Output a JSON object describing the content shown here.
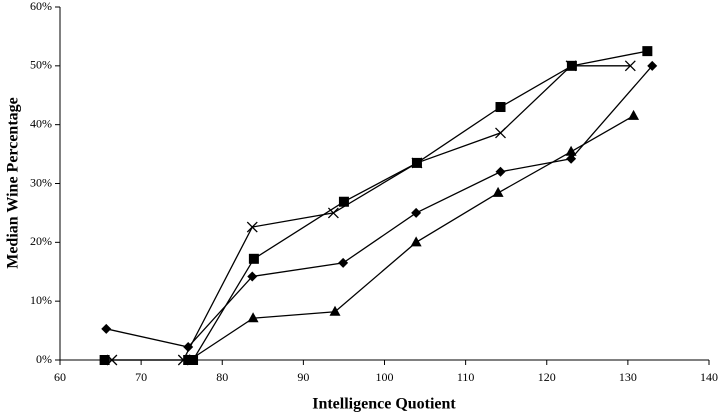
{
  "chart_data": {
    "type": "line",
    "xlabel": "Intelligence Quotient",
    "ylabel": "Median Wine Percentage",
    "xlim": [
      60,
      140
    ],
    "xticks": [
      60,
      70,
      80,
      90,
      100,
      110,
      120,
      130,
      140
    ],
    "ylim": [
      0,
      60
    ],
    "yticks": [
      {
        "value": 0,
        "label": "0%"
      },
      {
        "value": 10,
        "label": "10%"
      },
      {
        "value": 20,
        "label": "20%"
      },
      {
        "value": 30,
        "label": "30%"
      },
      {
        "value": 40,
        "label": "40%"
      },
      {
        "value": 50,
        "label": "50%"
      },
      {
        "value": 60,
        "label": "60%"
      }
    ],
    "series": [
      {
        "marker": "diamond",
        "color": "#000000",
        "x": [
          65.7,
          75.8,
          83.7,
          94.9,
          103.9,
          114.3,
          123.0,
          133.0
        ],
        "values": [
          5.3,
          2.2,
          14.2,
          16.5,
          25,
          32,
          34.2,
          50
        ]
      },
      {
        "marker": "square",
        "color": "#000000",
        "x": [
          65.5,
          75.8,
          76.4,
          83.9,
          95.0,
          104.0,
          114.3,
          123.1,
          132.4
        ],
        "values": [
          0,
          0,
          0,
          17.2,
          26.9,
          33.5,
          43,
          50,
          52.5
        ]
      },
      {
        "marker": "cross",
        "color": "#000000",
        "x": [
          66.4,
          75.2,
          83.7,
          93.7,
          104.0,
          114.3,
          123.0,
          130.3
        ],
        "values": [
          0,
          0,
          22.6,
          25,
          33.5,
          38.6,
          50,
          50
        ]
      },
      {
        "marker": "triangle",
        "color": "#000000",
        "x": [
          76.0,
          83.8,
          93.9,
          103.9,
          114.0,
          123.0,
          130.7
        ],
        "values": [
          0,
          7.1,
          8.2,
          20,
          28.4,
          35.4,
          41.5
        ]
      }
    ]
  }
}
